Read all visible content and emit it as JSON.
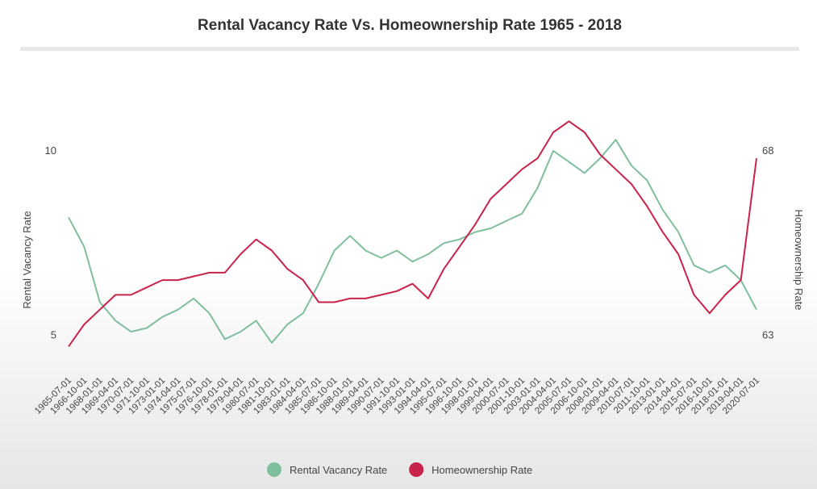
{
  "chart_data": {
    "type": "line",
    "title": "Rental Vacancy Rate Vs. Homeownership Rate 1965 - 2018",
    "ylabel": "Rental Vacancy Rate",
    "y2label": "Homeownership Rate",
    "categories": [
      "1965-07-01",
      "1966-10-01",
      "1968-01-01",
      "1969-04-01",
      "1970-07-01",
      "1971-10-01",
      "1973-01-01",
      "1974-04-01",
      "1975-07-01",
      "1976-10-01",
      "1978-01-01",
      "1979-04-01",
      "1980-07-01",
      "1981-10-01",
      "1983-01-01",
      "1984-04-01",
      "1985-07-01",
      "1986-10-01",
      "1988-01-01",
      "1989-04-01",
      "1990-07-01",
      "1991-10-01",
      "1993-01-01",
      "1994-04-01",
      "1995-07-01",
      "1996-10-01",
      "1998-01-01",
      "1999-04-01",
      "2000-07-01",
      "2001-10-01",
      "2003-01-01",
      "2004-04-01",
      "2005-07-01",
      "2006-10-01",
      "2008-01-01",
      "2009-04-01",
      "2010-07-01",
      "2011-10-01",
      "2013-01-01",
      "2014-04-01",
      "2015-07-01",
      "2016-10-01",
      "2018-01-01",
      "2019-04-01",
      "2020-07-01"
    ],
    "series": [
      {
        "name": "Rental Vacancy Rate",
        "color": "#7fbf9e",
        "axis": "y",
        "values": [
          8.2,
          7.4,
          5.9,
          5.4,
          5.1,
          5.2,
          5.5,
          5.7,
          6.0,
          5.6,
          4.9,
          5.1,
          5.4,
          4.8,
          5.3,
          5.6,
          6.4,
          7.3,
          7.7,
          7.3,
          7.1,
          7.3,
          7.0,
          7.2,
          7.5,
          7.6,
          7.8,
          7.9,
          8.1,
          8.3,
          9.0,
          10.0,
          9.7,
          9.4,
          9.8,
          10.3,
          9.6,
          9.2,
          8.4,
          7.8,
          6.9,
          6.7,
          6.9,
          6.5,
          5.7
        ]
      },
      {
        "name": "Homeownership Rate",
        "color": "#c8234a",
        "axis": "y2",
        "values": [
          62.7,
          63.3,
          63.7,
          64.1,
          64.1,
          64.3,
          64.5,
          64.5,
          64.6,
          64.7,
          64.7,
          65.2,
          65.6,
          65.3,
          64.8,
          64.5,
          63.9,
          63.9,
          64.0,
          64.0,
          64.1,
          64.2,
          64.4,
          64.0,
          64.8,
          65.4,
          66.0,
          66.7,
          67.1,
          67.5,
          67.8,
          68.5,
          68.8,
          68.5,
          67.9,
          67.5,
          67.1,
          66.5,
          65.8,
          65.2,
          64.1,
          63.6,
          64.1,
          64.5,
          67.8
        ]
      }
    ],
    "ylim": [
      4.6,
      11.2
    ],
    "yticks": [
      5,
      10
    ],
    "y2lim": [
      62.6,
      69.2
    ],
    "y2ticks": [
      63,
      68
    ],
    "legend": "bottom",
    "grid": false
  }
}
